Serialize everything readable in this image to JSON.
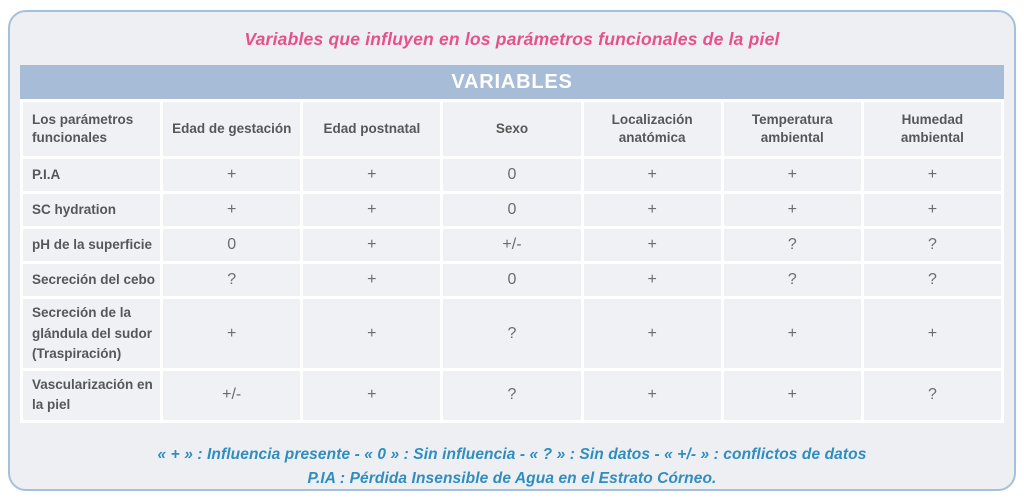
{
  "title": "Variables que influyen en los parámetros funcionales de la piel",
  "table": {
    "banner": "VARIABLES",
    "corner_header": "Los parámetros funcionales",
    "columns": [
      "Edad de gestación",
      "Edad postnatal",
      "Sexo",
      "Localización anatómica",
      "Temperatura ambiental",
      "Humedad ambiental"
    ],
    "rows": [
      {
        "label": "P.I.A",
        "values": [
          "+",
          "+",
          "0",
          "+",
          "+",
          "+"
        ]
      },
      {
        "label": "SC hydration",
        "values": [
          "+",
          "+",
          "0",
          "+",
          "+",
          "+"
        ]
      },
      {
        "label": "pH de la superficie",
        "values": [
          "0",
          "+",
          "+/-",
          "+",
          "?",
          "?"
        ]
      },
      {
        "label": "Secreción del cebo",
        "values": [
          "?",
          "+",
          "0",
          "+",
          "?",
          "?"
        ]
      },
      {
        "label": "Secreción de la glándula del sudor (Traspiración)",
        "values": [
          "+",
          "+",
          "?",
          "+",
          "+",
          "+"
        ]
      },
      {
        "label": "Vascularización en la piel",
        "values": [
          "+/-",
          "+",
          "?",
          "+",
          "+",
          "?"
        ]
      }
    ]
  },
  "legend": {
    "line1": "« + » : Influencia presente - « 0 » : Sin influencia - « ? » : Sin datos - « +/- » : conflictos de datos",
    "line2": "P.IA : Pérdida Insensible de Agua en el Estrato Córneo."
  },
  "colors": {
    "title_pink": "#e8508a",
    "banner_blue": "#a7bcd6",
    "legend_blue": "#2f8dbf",
    "card_border_blue": "#a4c0dc",
    "card_background": "#edeff3",
    "cell_background": "#f0f1f4",
    "header_text": "#565759",
    "value_text": "#6b6c6e"
  }
}
